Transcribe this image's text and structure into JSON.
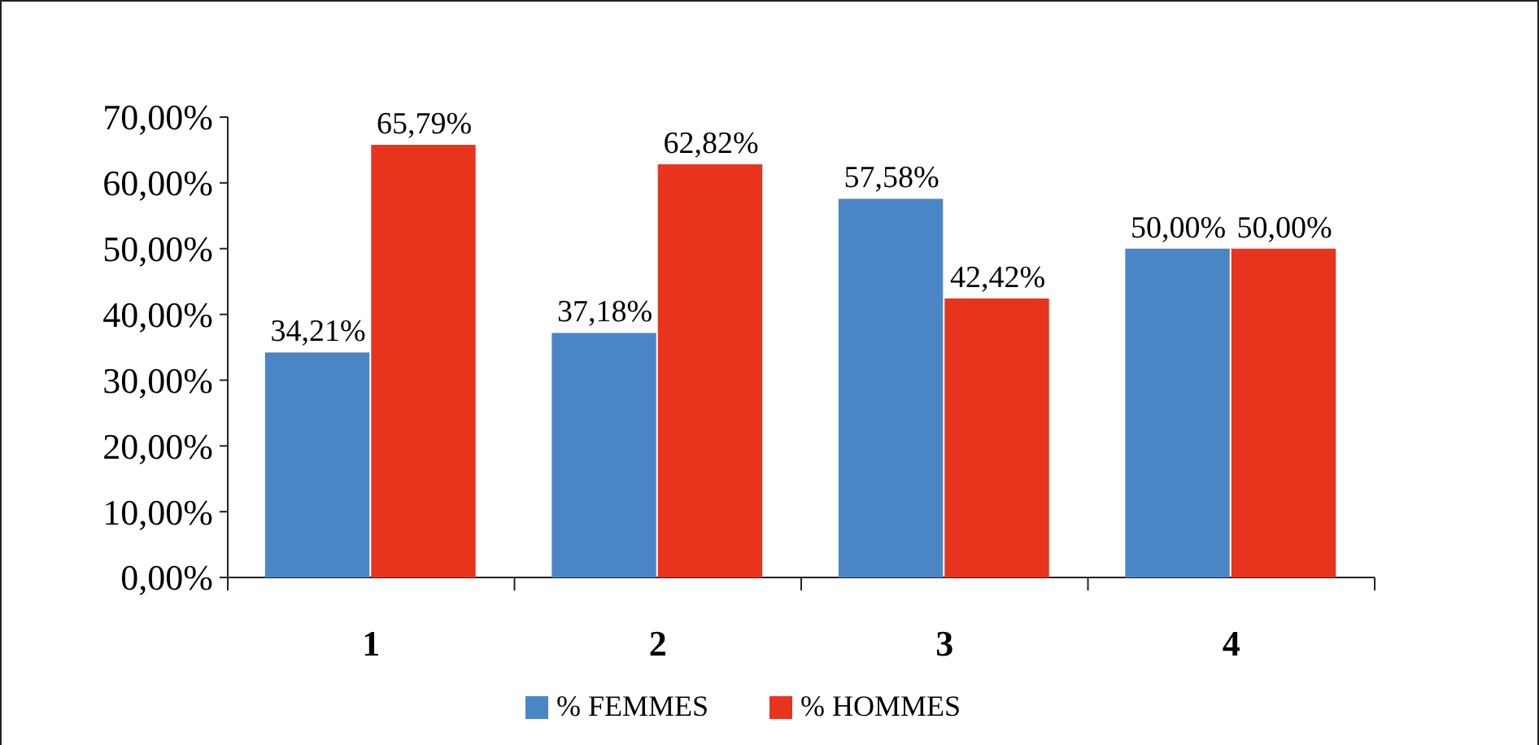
{
  "chart_data": {
    "type": "bar",
    "categories": [
      "1",
      "2",
      "3",
      "4"
    ],
    "series": [
      {
        "name": "% FEMMES",
        "color": "#4a86c5",
        "values": [
          34.21,
          37.18,
          57.58,
          50
        ],
        "value_labels": [
          "34,21%",
          "37,18%",
          "57,58%",
          "50,00%"
        ]
      },
      {
        "name": "% HOMMES",
        "color": "#e8341c",
        "values": [
          65.79,
          62.82,
          42.42,
          50
        ],
        "value_labels": [
          "65,79%",
          "62,82%",
          "42,42%",
          "50,00%"
        ]
      }
    ],
    "ylim": [
      0,
      70
    ],
    "yticks": [
      {
        "value": 0,
        "label": "0,00%"
      },
      {
        "value": 10,
        "label": "10,00%"
      },
      {
        "value": 20,
        "label": "20,00%"
      },
      {
        "value": 30,
        "label": "30,00%"
      },
      {
        "value": 40,
        "label": "40,00%"
      },
      {
        "value": 50,
        "label": "50,00%"
      },
      {
        "value": 60,
        "label": "60,00%"
      },
      {
        "value": 70,
        "label": "70,00%"
      }
    ],
    "legend": "bottom",
    "grid": false
  }
}
